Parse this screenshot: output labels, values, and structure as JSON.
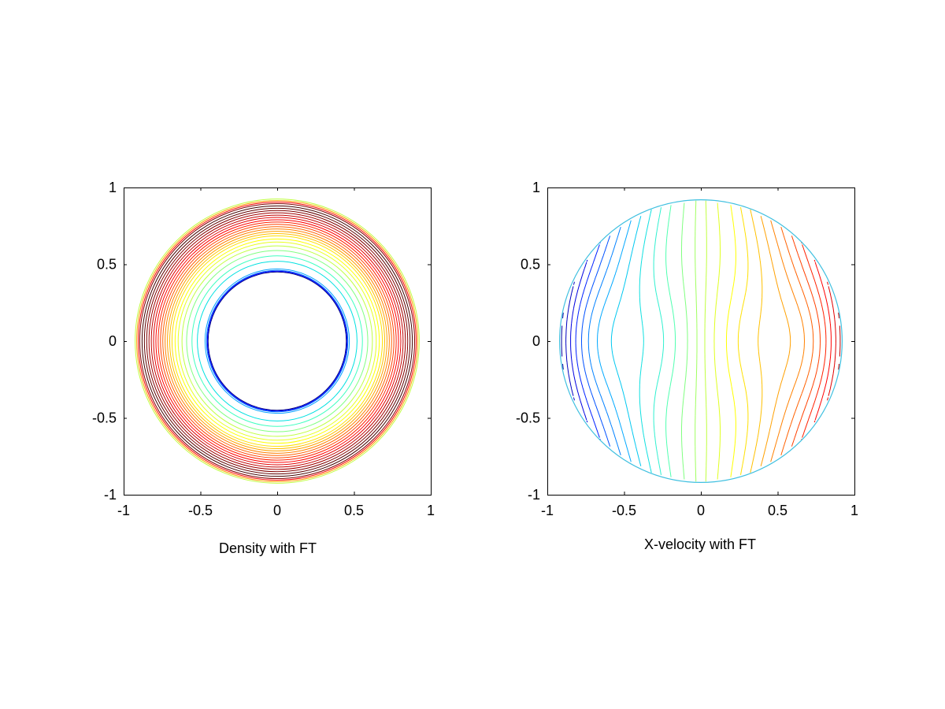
{
  "chart_data": [
    {
      "type": "contour",
      "title": "",
      "xlabel": "Density with FT",
      "ylabel": "",
      "xlim": [
        -1,
        1
      ],
      "ylim": [
        -1,
        1
      ],
      "xticks": [
        -1,
        -0.5,
        0,
        0.5,
        1
      ],
      "xtick_labels": [
        "-1",
        "-0.5",
        "0",
        "0.5",
        "1"
      ],
      "yticks": [
        1,
        0.5,
        0,
        -0.5,
        -1
      ],
      "ytick_labels": [
        "1",
        "0.5",
        "0",
        "-0.5",
        "-1"
      ],
      "grid": false,
      "colormap": "jet",
      "domain": "annulus",
      "inner_radius": 0.45,
      "outer_radius": 0.92,
      "series": [
        {
          "level_radius": 0.45,
          "color": "#000080"
        },
        {
          "level_radius": 0.455,
          "color": "#0000ff"
        },
        {
          "level_radius": 0.46,
          "color": "#0060ff"
        },
        {
          "level_radius": 0.47,
          "color": "#00a0ff"
        },
        {
          "level_radius": 0.52,
          "color": "#00e0e0"
        },
        {
          "level_radius": 0.555,
          "color": "#40ffc0"
        },
        {
          "level_radius": 0.59,
          "color": "#80ff80"
        },
        {
          "level_radius": 0.62,
          "color": "#c0ff40"
        },
        {
          "level_radius": 0.645,
          "color": "#e8ff20"
        },
        {
          "level_radius": 0.665,
          "color": "#ffff00"
        },
        {
          "level_radius": 0.685,
          "color": "#ffe000"
        },
        {
          "level_radius": 0.7,
          "color": "#ffc000"
        },
        {
          "level_radius": 0.715,
          "color": "#ffa000"
        },
        {
          "level_radius": 0.73,
          "color": "#ff8000"
        },
        {
          "level_radius": 0.745,
          "color": "#ff6000"
        },
        {
          "level_radius": 0.76,
          "color": "#ff4000"
        },
        {
          "level_radius": 0.775,
          "color": "#ff2000"
        },
        {
          "level_radius": 0.79,
          "color": "#ff0000"
        },
        {
          "level_radius": 0.805,
          "color": "#e00000"
        },
        {
          "level_radius": 0.82,
          "color": "#c00000"
        },
        {
          "level_radius": 0.835,
          "color": "#a00000"
        },
        {
          "level_radius": 0.85,
          "color": "#800000"
        },
        {
          "level_radius": 0.865,
          "color": "#600000"
        },
        {
          "level_radius": 0.88,
          "color": "#400000"
        },
        {
          "level_radius": 0.895,
          "color": "#800000"
        },
        {
          "level_radius": 0.905,
          "color": "#ff0000"
        },
        {
          "level_radius": 0.915,
          "color": "#ffa000"
        },
        {
          "level_radius": 0.925,
          "color": "#c0ff40"
        }
      ]
    },
    {
      "type": "contour",
      "title": "",
      "xlabel": "X-velocity with FT",
      "ylabel": "",
      "xlim": [
        -1,
        1
      ],
      "ylim": [
        -1,
        1
      ],
      "xticks": [
        -1,
        -0.5,
        0,
        0.5,
        1
      ],
      "xtick_labels": [
        "-1",
        "-0.5",
        "0",
        "0.5",
        "1"
      ],
      "yticks": [
        1,
        0.5,
        0,
        -0.5,
        -1
      ],
      "ytick_labels": [
        "1",
        "0.5",
        "0",
        "-0.5",
        "-1"
      ],
      "grid": false,
      "colormap": "jet",
      "domain": "disk",
      "outer_radius": 0.92,
      "series": [
        {
          "level": -0.9,
          "color": "#000060"
        },
        {
          "level": -0.84,
          "color": "#000080"
        },
        {
          "level": -0.78,
          "color": "#0000a0"
        },
        {
          "level": -0.72,
          "color": "#0000c0"
        },
        {
          "level": -0.66,
          "color": "#0000e0"
        },
        {
          "level": -0.6,
          "color": "#0020ff"
        },
        {
          "level": -0.54,
          "color": "#0050ff"
        },
        {
          "level": -0.48,
          "color": "#0080ff"
        },
        {
          "level": -0.42,
          "color": "#00a8ff"
        },
        {
          "level": -0.36,
          "color": "#00c8f0"
        },
        {
          "level": -0.3,
          "color": "#10e0e0"
        },
        {
          "level": -0.24,
          "color": "#30f0d0"
        },
        {
          "level": -0.18,
          "color": "#50ffb0"
        },
        {
          "level": -0.1,
          "color": "#80ff80"
        },
        {
          "level": -0.03,
          "color": "#a0ff60"
        },
        {
          "level": 0.03,
          "color": "#c0ff40"
        },
        {
          "level": 0.1,
          "color": "#e0ff20"
        },
        {
          "level": 0.18,
          "color": "#ffff00"
        },
        {
          "level": 0.24,
          "color": "#ffe000"
        },
        {
          "level": 0.3,
          "color": "#ffc000"
        },
        {
          "level": 0.36,
          "color": "#ffa000"
        },
        {
          "level": 0.42,
          "color": "#ff8000"
        },
        {
          "level": 0.48,
          "color": "#ff6000"
        },
        {
          "level": 0.54,
          "color": "#ff4000"
        },
        {
          "level": 0.6,
          "color": "#ff2000"
        },
        {
          "level": 0.66,
          "color": "#ff0000"
        },
        {
          "level": 0.72,
          "color": "#e00000"
        },
        {
          "level": 0.78,
          "color": "#c00000"
        },
        {
          "level": 0.84,
          "color": "#a00000"
        },
        {
          "level": 0.9,
          "color": "#800000"
        }
      ]
    }
  ]
}
